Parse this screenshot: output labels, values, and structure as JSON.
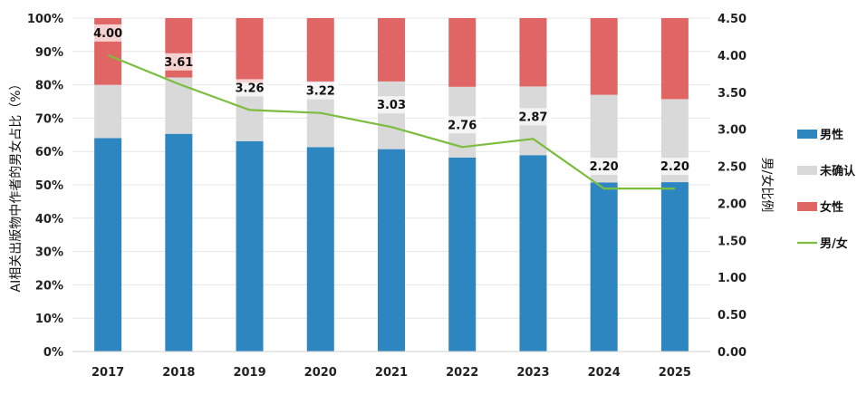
{
  "chart_data": {
    "type": "bar",
    "stacked": true,
    "percent_stacked": true,
    "categories": [
      "2017",
      "2018",
      "2019",
      "2020",
      "2021",
      "2022",
      "2023",
      "2024",
      "2025"
    ],
    "series": [
      {
        "name": "男性",
        "color": "#2e86c1",
        "values": [
          64,
          65.3,
          63.1,
          61.3,
          60.7,
          58.2,
          58.9,
          50.7,
          50.8
        ]
      },
      {
        "name": "未确认",
        "color": "#d9d9d9",
        "values": [
          16,
          16.9,
          17.6,
          19.7,
          20.3,
          21.2,
          20.6,
          26.3,
          24.9
        ]
      },
      {
        "name": "女性",
        "color": "#e06666",
        "values": [
          20,
          17.8,
          19.3,
          19.0,
          19.0,
          20.6,
          20.5,
          23.0,
          24.3
        ]
      }
    ],
    "line_series": {
      "name": "男/女",
      "color": "#7cbd3f",
      "axis": "right",
      "values": [
        4.0,
        3.61,
        3.26,
        3.22,
        3.03,
        2.76,
        2.87,
        2.2,
        2.2
      ]
    },
    "data_labels": [
      "4.00",
      "3.61",
      "3.26",
      "3.22",
      "3.03",
      "2.76",
      "2.87",
      "2.20",
      "2.20"
    ],
    "ylabel": "AI相关出版物中作者的男女占比（%）",
    "y2label": "男/女比例",
    "ylim": [
      0,
      100
    ],
    "y2lim": [
      0,
      4.5
    ],
    "yticks": [
      "0%",
      "10%",
      "20%",
      "30%",
      "40%",
      "50%",
      "60%",
      "70%",
      "80%",
      "90%",
      "100%"
    ],
    "y2ticks": [
      "0.00",
      "0.50",
      "1.00",
      "1.50",
      "2.00",
      "2.50",
      "3.00",
      "3.50",
      "4.00",
      "4.50"
    ],
    "legend": [
      {
        "label": "男性",
        "color": "#2e86c1",
        "kind": "box"
      },
      {
        "label": "未确认",
        "color": "#d9d9d9",
        "kind": "box"
      },
      {
        "label": "女性",
        "color": "#e06666",
        "kind": "box"
      },
      {
        "label": "男/女",
        "color": "#7cbd3f",
        "kind": "line"
      }
    ],
    "legend_position": "right"
  }
}
